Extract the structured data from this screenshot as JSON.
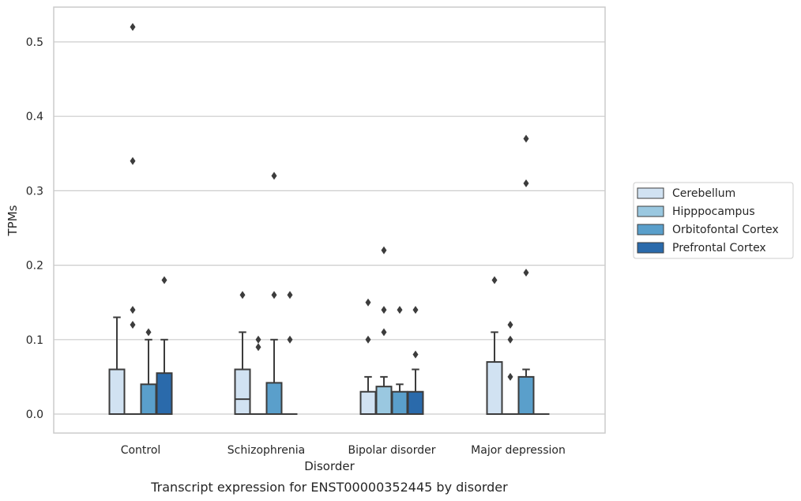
{
  "chart_data": {
    "type": "box",
    "xlabel": "Disorder",
    "ylabel": "TPMs",
    "caption": "Transcript expression for ENST00000352445 by disorder",
    "ylim": [
      -0.025,
      0.547
    ],
    "yticks": [
      "0.0",
      "0.1",
      "0.2",
      "0.3",
      "0.4",
      "0.5"
    ],
    "grid": "horizontal",
    "legend_position": "right",
    "categories": [
      "Control",
      "Schizophrenia",
      "Bipolar disorder",
      "Major depression"
    ],
    "series": [
      {
        "name": "Cerebellum",
        "color": "#d1e2f2",
        "boxes": [
          {
            "q1": 0.0,
            "median": 0.0,
            "q3": 0.06,
            "whisker_low": 0.0,
            "whisker_high": 0.13,
            "outliers": []
          },
          {
            "q1": 0.0,
            "median": 0.02,
            "q3": 0.06,
            "whisker_low": 0.0,
            "whisker_high": 0.11,
            "outliers": [
              0.16
            ]
          },
          {
            "q1": 0.0,
            "median": 0.0,
            "q3": 0.03,
            "whisker_low": 0.0,
            "whisker_high": 0.05,
            "outliers": [
              0.1,
              0.15
            ]
          },
          {
            "q1": 0.0,
            "median": 0.0,
            "q3": 0.07,
            "whisker_low": 0.0,
            "whisker_high": 0.11,
            "outliers": [
              0.18
            ]
          }
        ]
      },
      {
        "name": "Hipppocampus",
        "color": "#9ac8e0",
        "boxes": [
          {
            "q1": 0.0,
            "median": 0.0,
            "q3": 0.0,
            "whisker_low": 0.0,
            "whisker_high": 0.0,
            "outliers": [
              0.12,
              0.14,
              0.34,
              0.52
            ]
          },
          {
            "q1": 0.0,
            "median": 0.0,
            "q3": 0.0,
            "whisker_low": 0.0,
            "whisker_high": 0.0,
            "outliers": [
              0.09,
              0.1
            ]
          },
          {
            "q1": 0.0,
            "median": 0.0,
            "q3": 0.037,
            "whisker_low": 0.0,
            "whisker_high": 0.05,
            "outliers": [
              0.11,
              0.14,
              0.22
            ]
          },
          {
            "q1": 0.0,
            "median": 0.0,
            "q3": 0.0,
            "whisker_low": 0.0,
            "whisker_high": 0.0,
            "outliers": [
              0.05,
              0.1,
              0.12
            ]
          }
        ]
      },
      {
        "name": "Orbitofontal Cortex",
        "color": "#5a9fcb",
        "boxes": [
          {
            "q1": 0.0,
            "median": 0.0,
            "q3": 0.04,
            "whisker_low": 0.0,
            "whisker_high": 0.1,
            "outliers": [
              0.11
            ]
          },
          {
            "q1": 0.0,
            "median": 0.0,
            "q3": 0.042,
            "whisker_low": 0.0,
            "whisker_high": 0.1,
            "outliers": [
              0.16,
              0.32
            ]
          },
          {
            "q1": 0.0,
            "median": 0.0,
            "q3": 0.03,
            "whisker_low": 0.0,
            "whisker_high": 0.04,
            "outliers": [
              0.14
            ]
          },
          {
            "q1": 0.0,
            "median": 0.0,
            "q3": 0.05,
            "whisker_low": 0.0,
            "whisker_high": 0.06,
            "outliers": [
              0.19,
              0.31,
              0.37
            ]
          }
        ]
      },
      {
        "name": "Prefrontal Cortex",
        "color": "#2a6aab",
        "boxes": [
          {
            "q1": 0.0,
            "median": 0.0,
            "q3": 0.055,
            "whisker_low": 0.0,
            "whisker_high": 0.1,
            "outliers": [
              0.18
            ]
          },
          {
            "q1": 0.0,
            "median": 0.0,
            "q3": 0.0,
            "whisker_low": 0.0,
            "whisker_high": 0.0,
            "outliers": [
              0.1,
              0.16
            ]
          },
          {
            "q1": 0.0,
            "median": 0.0,
            "q3": 0.03,
            "whisker_low": 0.0,
            "whisker_high": 0.06,
            "outliers": [
              0.08,
              0.14
            ]
          },
          {
            "q1": 0.0,
            "median": 0.0,
            "q3": 0.0,
            "whisker_low": 0.0,
            "whisker_high": 0.0,
            "outliers": []
          }
        ]
      }
    ]
  }
}
